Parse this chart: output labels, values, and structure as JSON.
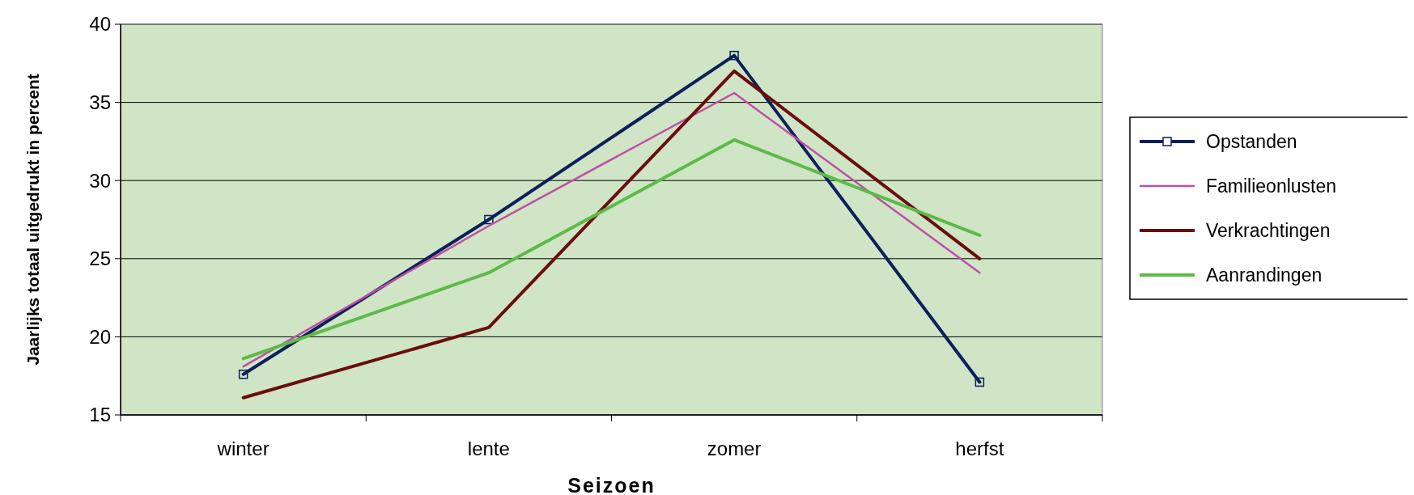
{
  "chart_data": {
    "type": "line",
    "xlabel": "Seizoen",
    "ylabel": "Jaarlijks totaal uitgedrukt in percent",
    "categories": [
      "winter",
      "lente",
      "zomer",
      "herfst"
    ],
    "series": [
      {
        "name": "Opstanden",
        "color": "#0d1f5c",
        "values": [
          17.6,
          27.5,
          38,
          17.1
        ],
        "marker": "square"
      },
      {
        "name": "Familieonlusten",
        "color": "#c04ea8",
        "values": [
          18.1,
          27.1,
          35.6,
          24.1
        ],
        "marker": "none"
      },
      {
        "name": "Verkrachtingen",
        "color": "#6b0d0d",
        "values": [
          16.1,
          20.6,
          37,
          25
        ],
        "marker": "none"
      },
      {
        "name": "Aanrandingen",
        "color": "#5dba48",
        "values": [
          18.6,
          24.1,
          32.6,
          26.5
        ],
        "marker": "none"
      }
    ],
    "ylim": [
      15,
      40
    ],
    "yticks": [
      15,
      20,
      25,
      30,
      35,
      40
    ],
    "grid": "y",
    "legend": "right"
  }
}
